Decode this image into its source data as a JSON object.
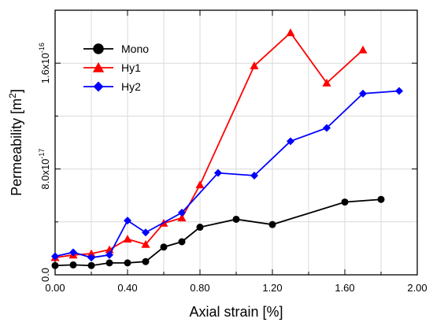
{
  "chart_data": {
    "type": "line",
    "title": "",
    "xlabel": "Axial strain [%]",
    "ylabel_main": "Permeability [m",
    "ylabel_sup": "2",
    "ylabel_end": "]",
    "xlim": [
      0.0,
      2.0
    ],
    "ylim": [
      0.0,
      2e-16
    ],
    "grid": true,
    "legend_position": "top-left",
    "x_ticks": [
      {
        "value": 0.0,
        "label": "0.00"
      },
      {
        "value": 0.4,
        "label": "0.40"
      },
      {
        "value": 0.8,
        "label": "0.80"
      },
      {
        "value": 1.2,
        "label": "1.20"
      },
      {
        "value": 1.6,
        "label": "1.60"
      },
      {
        "value": 2.0,
        "label": "2.00"
      }
    ],
    "y_ticks": [
      {
        "value": 0.0,
        "mantissa": "0.0",
        "exponent": ""
      },
      {
        "value": 8e-17,
        "mantissa": "8.0x10",
        "exponent": "-17"
      },
      {
        "value": 1.6e-16,
        "mantissa": "1.6x10",
        "exponent": "-16"
      }
    ],
    "series": [
      {
        "name": "Mono",
        "color": "#000000",
        "marker": "circle",
        "x": [
          0.0,
          0.1,
          0.2,
          0.3,
          0.4,
          0.5,
          0.6,
          0.7,
          0.8,
          1.0,
          1.2,
          1.6,
          1.8
        ],
        "y": [
          7e-18,
          7.5e-18,
          7e-18,
          9e-18,
          9e-18,
          1e-17,
          2.1e-17,
          2.5e-17,
          3.6e-17,
          4.2e-17,
          3.8e-17,
          5.5e-17,
          5.7e-17
        ]
      },
      {
        "name": "Hy1",
        "color": "#ff0000",
        "marker": "triangle",
        "x": [
          0.0,
          0.1,
          0.2,
          0.3,
          0.4,
          0.5,
          0.6,
          0.7,
          0.8,
          1.1,
          1.3,
          1.5,
          1.7
        ],
        "y": [
          1.3e-17,
          1.5e-17,
          1.6e-17,
          1.9e-17,
          2.7e-17,
          2.3e-17,
          3.9e-17,
          4.3e-17,
          6.8e-17,
          1.58e-16,
          1.83e-16,
          1.45e-16,
          1.7e-16
        ]
      },
      {
        "name": "Hy2",
        "color": "#0000ff",
        "marker": "diamond",
        "x": [
          0.0,
          0.1,
          0.2,
          0.3,
          0.4,
          0.5,
          0.7,
          0.9,
          1.1,
          1.3,
          1.5,
          1.7,
          1.9
        ],
        "y": [
          1.4e-17,
          1.7e-17,
          1.3e-17,
          1.5e-17,
          4.1e-17,
          3.2e-17,
          4.7e-17,
          7.7e-17,
          7.5e-17,
          1.01e-16,
          1.11e-16,
          1.37e-16,
          1.39e-16
        ]
      }
    ]
  }
}
